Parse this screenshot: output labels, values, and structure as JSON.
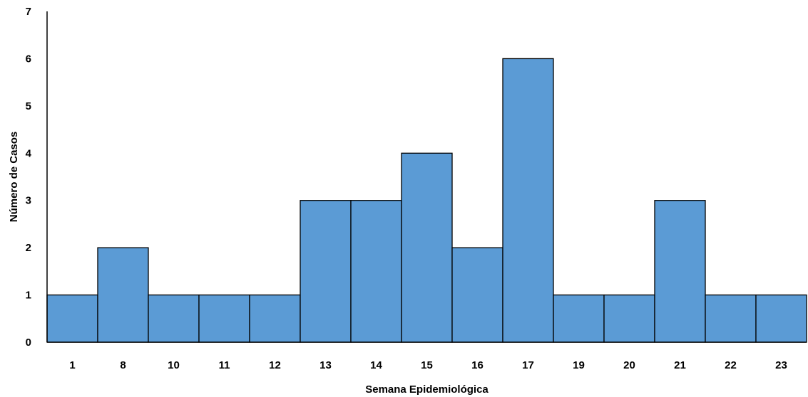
{
  "chart_data": {
    "type": "bar",
    "title": "",
    "xlabel": "Semana Epidemiológica",
    "ylabel": "Número de Casos",
    "categories": [
      "1",
      "8",
      "10",
      "11",
      "12",
      "13",
      "14",
      "15",
      "16",
      "17",
      "19",
      "20",
      "21",
      "22",
      "23"
    ],
    "values": [
      1,
      2,
      1,
      1,
      1,
      3,
      3,
      4,
      2,
      6,
      1,
      1,
      3,
      1,
      1
    ],
    "ylim": [
      0,
      7
    ],
    "yticks": [
      "0",
      "1",
      "2",
      "3",
      "4",
      "5",
      "6",
      "7"
    ],
    "grid": false,
    "legend": "none",
    "bar_color": "#5b9bd5",
    "bar_edge_color": "#000000"
  }
}
